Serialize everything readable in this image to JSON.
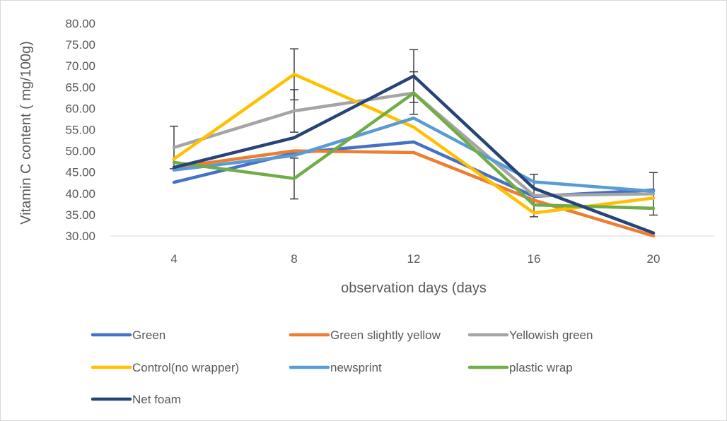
{
  "chart_data": {
    "type": "line",
    "xlabel": "observation days (days",
    "ylabel": "Vitamin C content ( mg/100g)",
    "categories": [
      "4",
      "8",
      "12",
      "16",
      "20"
    ],
    "ylim": [
      30,
      80
    ],
    "ytick_labels": [
      "30.00",
      "35.00",
      "40.00",
      "45.00",
      "50.00",
      "55.00",
      "60.00",
      "65.00",
      "70.00",
      "75.00",
      "80.00"
    ],
    "grid": false,
    "legend_position": "bottom",
    "series": [
      {
        "name": "Green",
        "color": "#4472C4",
        "values": [
          42.6,
          49.5,
          52.1,
          39.3,
          40.8
        ],
        "errors": [
          0,
          0,
          0,
          0,
          0
        ]
      },
      {
        "name": "Green slightly yellow",
        "color": "#ED7D31",
        "values": [
          46.1,
          50.0,
          49.6,
          38.4,
          30.0
        ],
        "errors": [
          0,
          0,
          0,
          0,
          0
        ]
      },
      {
        "name": "Yellowish green",
        "color": "#A5A5A5",
        "values": [
          50.8,
          59.4,
          63.6,
          39.5,
          39.9
        ],
        "errors": [
          5.0,
          5.0,
          5.0,
          5.0,
          5.0
        ]
      },
      {
        "name": "Control(no wrapper)",
        "color": "#FFC000",
        "values": [
          48.1,
          68.0,
          55.6,
          35.4,
          38.9
        ],
        "errors": [
          0,
          6.0,
          0,
          0,
          0
        ]
      },
      {
        "name": "newsprint",
        "color": "#5B9BD5",
        "values": [
          45.5,
          48.9,
          57.7,
          42.7,
          40.5
        ],
        "errors": [
          0,
          0,
          0,
          0,
          0
        ]
      },
      {
        "name": "plastic wrap",
        "color": "#70AD47",
        "values": [
          47.3,
          43.5,
          63.6,
          37.3,
          36.5
        ],
        "errors": [
          0,
          4.8,
          0,
          0,
          0
        ]
      },
      {
        "name": "Net foam",
        "color": "#264478",
        "values": [
          46.1,
          53.1,
          67.6,
          41.2,
          30.7
        ],
        "errors": [
          0,
          0,
          6.2,
          0,
          0
        ]
      }
    ]
  }
}
